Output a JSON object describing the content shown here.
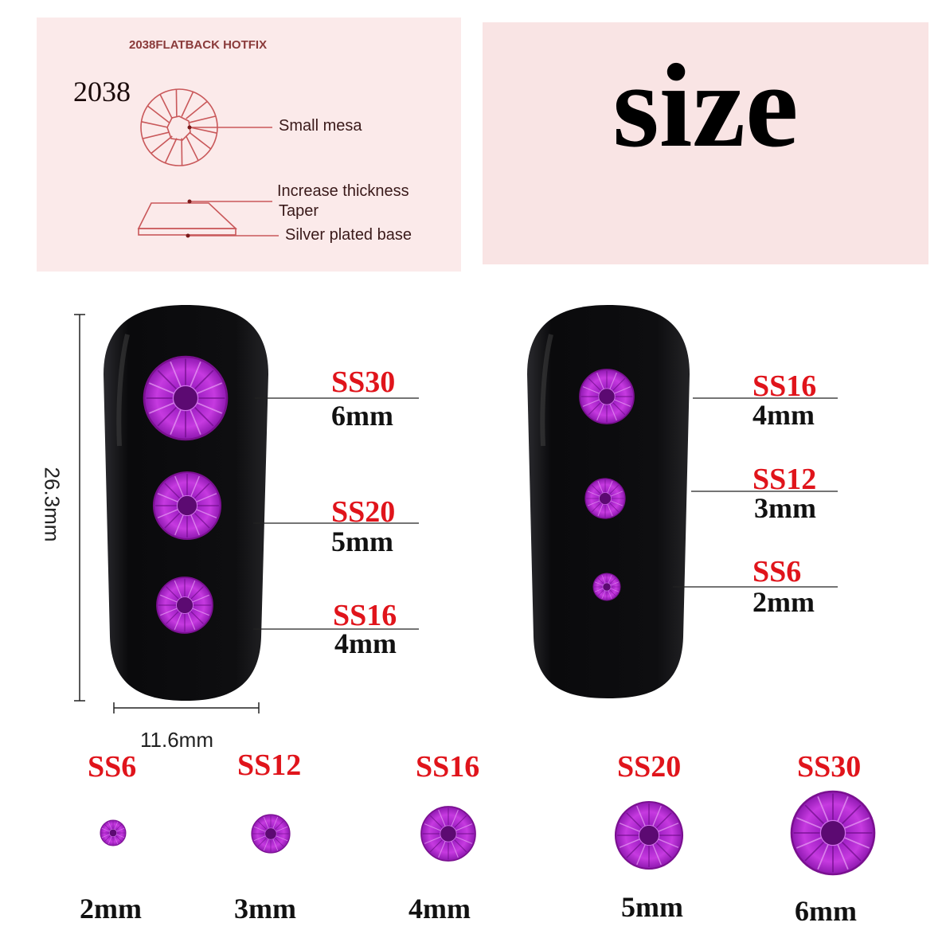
{
  "diagram": {
    "header": "2038FLATBACK HOTFIX",
    "model": "2038",
    "parts": [
      "Small mesa",
      "Increase thickness",
      "Taper",
      "Silver plated base"
    ]
  },
  "title": "size",
  "nail_dimensions": {
    "height": "26.3mm",
    "width": "11.6mm"
  },
  "nail_left": [
    {
      "code": "SS30",
      "mm": "6mm"
    },
    {
      "code": "SS20",
      "mm": "5mm"
    },
    {
      "code": "SS16",
      "mm": "4mm"
    }
  ],
  "nail_right": [
    {
      "code": "SS16",
      "mm": "4mm"
    },
    {
      "code": "SS12",
      "mm": "3mm"
    },
    {
      "code": "SS6",
      "mm": "2mm"
    }
  ],
  "size_row": [
    {
      "code": "SS6",
      "mm": "2mm"
    },
    {
      "code": "SS12",
      "mm": "3mm"
    },
    {
      "code": "SS16",
      "mm": "4mm"
    },
    {
      "code": "SS20",
      "mm": "5mm"
    },
    {
      "code": "SS30",
      "mm": "6mm"
    }
  ],
  "colors": {
    "gem": "#b020d0",
    "label": "#e0141b",
    "nail": "#0c0c0e",
    "panel": "#fbeaea",
    "diagram_line": "#c9585a"
  }
}
